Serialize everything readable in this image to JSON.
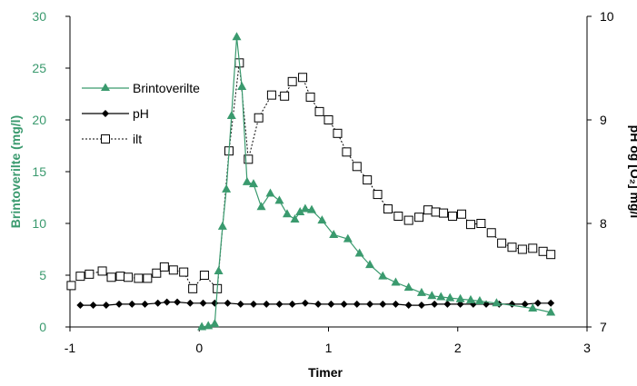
{
  "chart_data": {
    "type": "line",
    "xlabel": "Timer",
    "ylabel_left": "Brintoverilte (mg/l)",
    "ylabel_right": "pH og [O₂] mg/l",
    "xlim": [
      -1,
      3
    ],
    "ylim_left": [
      0,
      30
    ],
    "ylim_right": [
      7,
      10
    ],
    "x_ticks": [
      "-1",
      "0",
      "1",
      "2",
      "3"
    ],
    "y_left_ticks": [
      "0",
      "5",
      "10",
      "15",
      "20",
      "25",
      "30"
    ],
    "y_right_ticks": [
      "7",
      "8",
      "9",
      "10"
    ],
    "grid": false,
    "legend_position": "top-left",
    "colors": {
      "brintoverilte": "#3a9a6e",
      "ph": "#000000",
      "ilt": "#000000",
      "left_axis": "#3a9a6e"
    },
    "series": [
      {
        "name": "Brintoverilte",
        "axis": "left",
        "marker": "triangle",
        "line": "solid",
        "x": [
          0.02,
          0.07,
          0.12,
          0.15,
          0.18,
          0.21,
          0.25,
          0.29,
          0.33,
          0.37,
          0.42,
          0.48,
          0.55,
          0.62,
          0.68,
          0.74,
          0.78,
          0.82,
          0.87,
          0.95,
          1.04,
          1.15,
          1.24,
          1.32,
          1.42,
          1.52,
          1.62,
          1.72,
          1.8,
          1.87,
          1.94,
          2.02,
          2.1,
          2.17,
          2.3,
          2.58,
          2.72
        ],
        "y": [
          0.0,
          0.1,
          0.3,
          5.4,
          9.7,
          13.3,
          20.4,
          28.0,
          23.2,
          14.0,
          13.8,
          11.6,
          12.9,
          12.2,
          10.9,
          10.4,
          11.1,
          11.4,
          11.3,
          10.3,
          8.9,
          8.5,
          7.1,
          6.0,
          4.9,
          4.3,
          3.8,
          3.3,
          3.0,
          2.9,
          2.8,
          2.7,
          2.6,
          2.5,
          2.3,
          1.8,
          1.4
        ]
      },
      {
        "name": "pH",
        "axis": "right",
        "marker": "diamond",
        "line": "solid",
        "x": [
          -0.92,
          -0.82,
          -0.72,
          -0.62,
          -0.52,
          -0.42,
          -0.32,
          -0.25,
          -0.17,
          -0.07,
          0.03,
          0.12,
          0.22,
          0.32,
          0.42,
          0.52,
          0.62,
          0.72,
          0.82,
          0.92,
          1.02,
          1.12,
          1.22,
          1.32,
          1.42,
          1.52,
          1.62,
          1.72,
          1.82,
          1.92,
          2.02,
          2.12,
          2.22,
          2.32,
          2.42,
          2.52,
          2.62,
          2.72
        ],
        "y": [
          7.21,
          7.21,
          7.21,
          7.22,
          7.22,
          7.22,
          7.23,
          7.24,
          7.24,
          7.23,
          7.23,
          7.23,
          7.23,
          7.22,
          7.22,
          7.22,
          7.22,
          7.22,
          7.23,
          7.22,
          7.22,
          7.22,
          7.22,
          7.22,
          7.22,
          7.22,
          7.21,
          7.21,
          7.22,
          7.22,
          7.22,
          7.22,
          7.22,
          7.22,
          7.22,
          7.22,
          7.23,
          7.23
        ]
      },
      {
        "name": "ilt",
        "axis": "right",
        "marker": "square",
        "line": "dashed",
        "x": [
          -0.99,
          -0.92,
          -0.85,
          -0.75,
          -0.68,
          -0.61,
          -0.55,
          -0.47,
          -0.4,
          -0.33,
          -0.27,
          -0.2,
          -0.12,
          -0.05,
          0.04,
          0.14,
          0.23,
          0.31,
          0.38,
          0.46,
          0.56,
          0.66,
          0.72,
          0.8,
          0.86,
          0.93,
          1.0,
          1.07,
          1.14,
          1.22,
          1.3,
          1.38,
          1.46,
          1.54,
          1.62,
          1.7,
          1.77,
          1.83,
          1.89,
          1.96,
          2.03,
          2.1,
          2.18,
          2.26,
          2.34,
          2.42,
          2.5,
          2.58,
          2.66,
          2.72
        ],
        "y": [
          7.4,
          7.49,
          7.51,
          7.54,
          7.48,
          7.49,
          7.48,
          7.47,
          7.47,
          7.52,
          7.58,
          7.55,
          7.53,
          7.37,
          7.5,
          7.37,
          8.7,
          9.55,
          8.62,
          9.02,
          9.24,
          9.23,
          9.37,
          9.41,
          9.22,
          9.08,
          9.0,
          8.87,
          8.69,
          8.55,
          8.42,
          8.28,
          8.14,
          8.07,
          8.03,
          8.06,
          8.13,
          8.11,
          8.1,
          8.07,
          8.09,
          7.99,
          8.0,
          7.91,
          7.81,
          7.77,
          7.75,
          7.76,
          7.73,
          7.7
        ]
      }
    ]
  }
}
